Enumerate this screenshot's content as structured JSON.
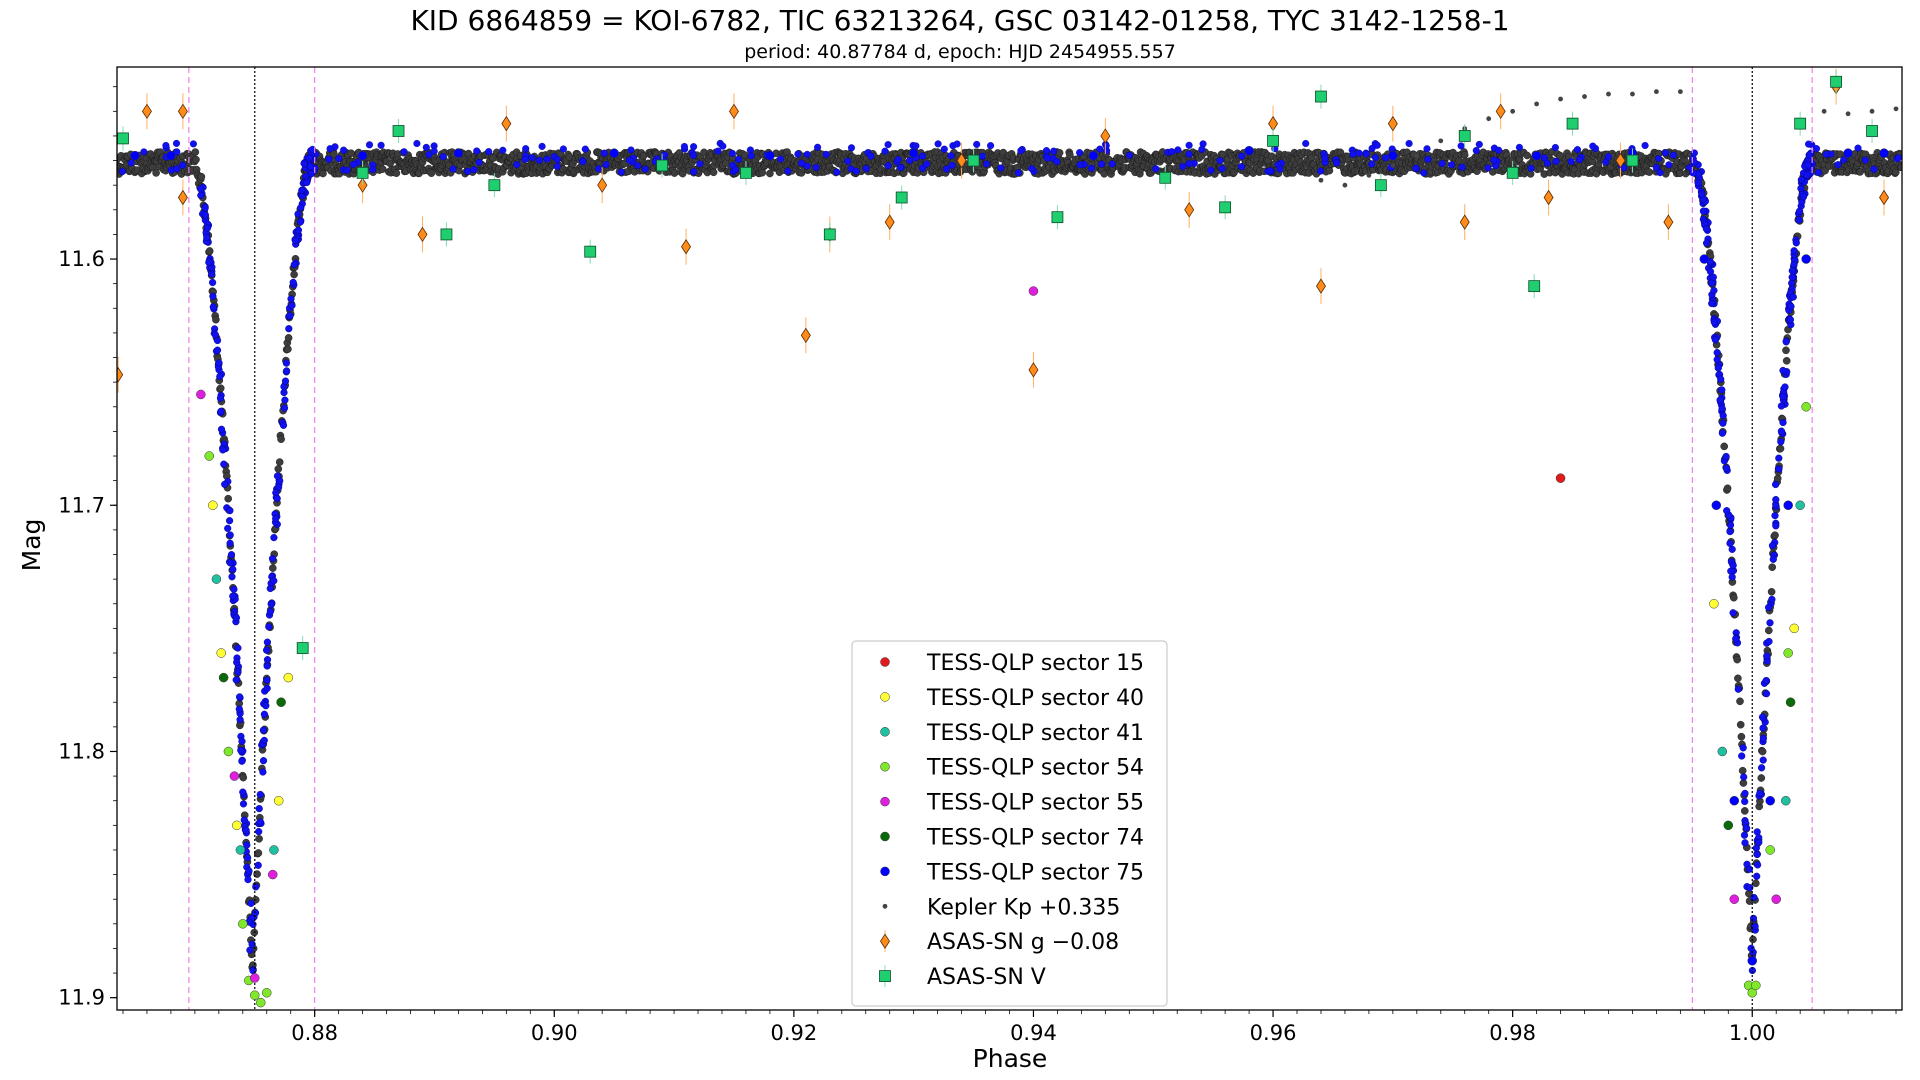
{
  "chart_data": {
    "type": "scatter",
    "title": "KID 6864859 = KOI-6782, TIC 63213264, GSC 03142-01258, TYC 3142-1258-1",
    "subtitle": "period: 40.87784 d, epoch: HJD 2454955.557",
    "xlabel": "Phase",
    "ylabel": "Mag",
    "xlim": [
      0.8635,
      1.0125
    ],
    "ylim": [
      11.905,
      11.522
    ],
    "y_inverted": true,
    "x_ticks": [
      0.88,
      0.9,
      0.92,
      0.94,
      0.96,
      0.98,
      1.0
    ],
    "x_tick_labels": [
      "0.88",
      "0.90",
      "0.92",
      "0.94",
      "0.96",
      "0.98",
      "1.00"
    ],
    "y_ticks": [
      11.6,
      11.7,
      11.8,
      11.9
    ],
    "y_tick_labels": [
      "11.6",
      "11.7",
      "11.8",
      "11.9"
    ],
    "grid": false,
    "legend_position": "bottom-center",
    "vertical_lines": [
      {
        "x": 0.8695,
        "style": "dashed",
        "color": "#ee82ee"
      },
      {
        "x": 0.88,
        "style": "dashed",
        "color": "#ee82ee"
      },
      {
        "x": 0.995,
        "style": "dashed",
        "color": "#ee82ee"
      },
      {
        "x": 1.005,
        "style": "dashed",
        "color": "#ee82ee"
      },
      {
        "x": 0.875,
        "style": "dotted",
        "color": "#000000"
      },
      {
        "x": 1.0,
        "style": "dotted",
        "color": "#000000"
      }
    ],
    "eclipses": [
      {
        "center": 0.8748,
        "ingress_start": 0.8705,
        "egress_end": 0.88,
        "depth": 11.89,
        "baseline": 11.561
      },
      {
        "center": 1.0,
        "ingress_start": 0.9955,
        "egress_end": 1.005,
        "depth": 11.885,
        "baseline": 11.561
      }
    ],
    "series": [
      {
        "name": "TESS-QLP sector 15",
        "marker": "circle",
        "color": "#e31a1c",
        "x": [
          0.984
        ],
        "y": [
          11.689
        ]
      },
      {
        "name": "TESS-QLP sector 40",
        "marker": "circle",
        "color": "#ffff33",
        "x": [
          0.8715,
          0.8722,
          0.8735,
          0.877,
          0.8778,
          0.9968,
          1.0035
        ],
        "y": [
          11.7,
          11.76,
          11.83,
          11.82,
          11.77,
          11.74,
          11.75
        ]
      },
      {
        "name": "TESS-QLP sector 41",
        "marker": "circle",
        "color": "#20c0a0",
        "x": [
          0.8718,
          0.8738,
          0.8766,
          0.9975,
          1.0028,
          1.004
        ],
        "y": [
          11.73,
          11.84,
          11.84,
          11.8,
          11.82,
          11.7
        ]
      },
      {
        "name": "TESS-QLP sector 54",
        "marker": "circle",
        "color": "#7fe82a",
        "x": [
          0.8712,
          0.8728,
          0.874,
          0.8745,
          0.875,
          0.8755,
          0.876,
          0.9997,
          1.0,
          1.0003,
          1.0015,
          1.003,
          1.0045
        ],
        "y": [
          11.68,
          11.8,
          11.87,
          11.893,
          11.899,
          11.902,
          11.898,
          11.895,
          11.898,
          11.895,
          11.84,
          11.76,
          11.66
        ]
      },
      {
        "name": "TESS-QLP sector 55",
        "marker": "circle",
        "color": "#e01ee0",
        "x": [
          0.8705,
          0.8733,
          0.875,
          0.8765,
          0.94,
          0.9985,
          1.002
        ],
        "y": [
          11.655,
          11.81,
          11.892,
          11.85,
          11.613,
          11.86,
          11.86
        ]
      },
      {
        "name": "TESS-QLP sector 74",
        "marker": "circle",
        "color": "#0a6a0a",
        "x": [
          0.8724,
          0.8772,
          0.998,
          1.0032
        ],
        "y": [
          11.77,
          11.78,
          11.83,
          11.78
        ]
      },
      {
        "name": "TESS-QLP sector 75",
        "marker": "circle",
        "color": "#0000ff",
        "x": [
          0.865,
          0.868,
          0.884,
          0.892,
          0.905,
          0.918,
          0.93,
          0.945,
          0.958,
          0.97,
          0.982,
          0.99,
          0.996,
          0.997,
          0.9985,
          1.0,
          1.0015,
          1.003,
          1.0045,
          1.008,
          1.011
        ],
        "y": [
          11.558,
          11.558,
          11.558,
          11.557,
          11.557,
          11.558,
          11.557,
          11.558,
          11.556,
          11.558,
          11.558,
          11.557,
          11.6,
          11.7,
          11.82,
          11.885,
          11.82,
          11.7,
          11.6,
          11.557,
          11.557
        ]
      },
      {
        "name": "Kepler Kp +0.335",
        "marker": "point",
        "color": "#444444",
        "x": [
          0.964,
          0.966,
          0.968,
          0.97,
          0.972,
          0.974,
          0.976,
          0.978,
          0.98,
          0.982,
          0.984,
          0.986,
          0.988,
          0.99,
          0.992,
          0.994,
          1.006,
          1.008,
          1.01,
          1.012
        ],
        "y": [
          11.568,
          11.57,
          11.566,
          11.562,
          11.558,
          11.552,
          11.547,
          11.543,
          11.54,
          11.537,
          11.535,
          11.534,
          11.533,
          11.533,
          11.532,
          11.532,
          11.54,
          11.541,
          11.54,
          11.539
        ]
      },
      {
        "name": "ASAS-SN g −0.08",
        "marker": "diamond",
        "color": "#ff8c1a",
        "x": [
          0.8636,
          0.866,
          0.869,
          0.869,
          0.884,
          0.889,
          0.896,
          0.904,
          0.911,
          0.915,
          0.921,
          0.923,
          0.928,
          0.934,
          0.94,
          0.946,
          0.953,
          0.96,
          0.964,
          0.97,
          0.976,
          0.979,
          0.983,
          0.989,
          0.993,
          1.007,
          1.011
        ],
        "y": [
          11.647,
          11.54,
          11.54,
          11.575,
          11.57,
          11.59,
          11.545,
          11.57,
          11.595,
          11.54,
          11.631,
          11.59,
          11.585,
          11.56,
          11.645,
          11.55,
          11.58,
          11.545,
          11.611,
          11.545,
          11.585,
          11.54,
          11.575,
          11.56,
          11.585,
          11.53,
          11.575
        ]
      },
      {
        "name": "ASAS-SN V",
        "marker": "square",
        "color": "#1fcf6f",
        "x": [
          0.864,
          0.879,
          0.884,
          0.887,
          0.891,
          0.895,
          0.903,
          0.909,
          0.916,
          0.923,
          0.929,
          0.935,
          0.942,
          0.951,
          0.956,
          0.96,
          0.964,
          0.969,
          0.976,
          0.98,
          0.9818,
          0.985,
          0.99,
          1.004,
          1.007,
          1.01
        ],
        "y": [
          11.551,
          11.758,
          11.565,
          11.548,
          11.59,
          11.57,
          11.597,
          11.562,
          11.565,
          11.59,
          11.575,
          11.56,
          11.583,
          11.567,
          11.579,
          11.552,
          11.534,
          11.57,
          11.55,
          11.565,
          11.611,
          11.545,
          11.56,
          11.545,
          11.528,
          11.548
        ]
      }
    ]
  }
}
